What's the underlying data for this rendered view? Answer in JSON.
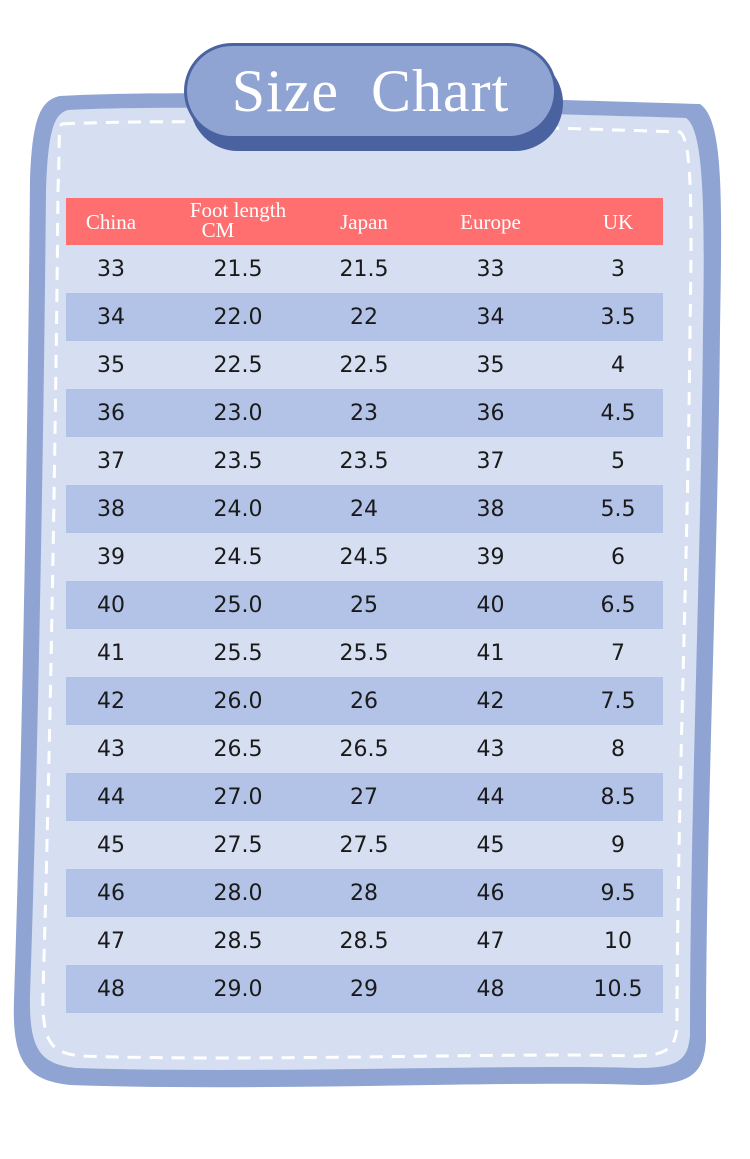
{
  "title": "Size  Chart",
  "colors": {
    "frame": "#8fa4d3",
    "card": "#d5dff1",
    "header": "#ff6f70",
    "stripe": "#b3c2e7",
    "badge_shadow": "#4a63a0"
  },
  "columns": {
    "china": "China",
    "foot_length_line1": "Foot length",
    "foot_length_line2": "CM",
    "japan": "Japan",
    "europe": "Europe",
    "uk": "UK"
  },
  "rows": [
    {
      "china": "33",
      "foot": "21.5",
      "japan": "21.5",
      "europe": "33",
      "uk": "3"
    },
    {
      "china": "34",
      "foot": "22.0",
      "japan": "22",
      "europe": "34",
      "uk": "3.5"
    },
    {
      "china": "35",
      "foot": "22.5",
      "japan": "22.5",
      "europe": "35",
      "uk": "4"
    },
    {
      "china": "36",
      "foot": "23.0",
      "japan": "23",
      "europe": "36",
      "uk": "4.5"
    },
    {
      "china": "37",
      "foot": "23.5",
      "japan": "23.5",
      "europe": "37",
      "uk": "5"
    },
    {
      "china": "38",
      "foot": "24.0",
      "japan": "24",
      "europe": "38",
      "uk": "5.5"
    },
    {
      "china": "39",
      "foot": "24.5",
      "japan": "24.5",
      "europe": "39",
      "uk": "6"
    },
    {
      "china": "40",
      "foot": "25.0",
      "japan": "25",
      "europe": "40",
      "uk": "6.5"
    },
    {
      "china": "41",
      "foot": "25.5",
      "japan": "25.5",
      "europe": "41",
      "uk": "7"
    },
    {
      "china": "42",
      "foot": "26.0",
      "japan": "26",
      "europe": "42",
      "uk": "7.5"
    },
    {
      "china": "43",
      "foot": "26.5",
      "japan": "26.5",
      "europe": "43",
      "uk": "8"
    },
    {
      "china": "44",
      "foot": "27.0",
      "japan": "27",
      "europe": "44",
      "uk": "8.5"
    },
    {
      "china": "45",
      "foot": "27.5",
      "japan": "27.5",
      "europe": "45",
      "uk": "9"
    },
    {
      "china": "46",
      "foot": "28.0",
      "japan": "28",
      "europe": "46",
      "uk": "9.5"
    },
    {
      "china": "47",
      "foot": "28.5",
      "japan": "28.5",
      "europe": "47",
      "uk": "10"
    },
    {
      "china": "48",
      "foot": "29.0",
      "japan": "29",
      "europe": "48",
      "uk": "10.5"
    }
  ]
}
